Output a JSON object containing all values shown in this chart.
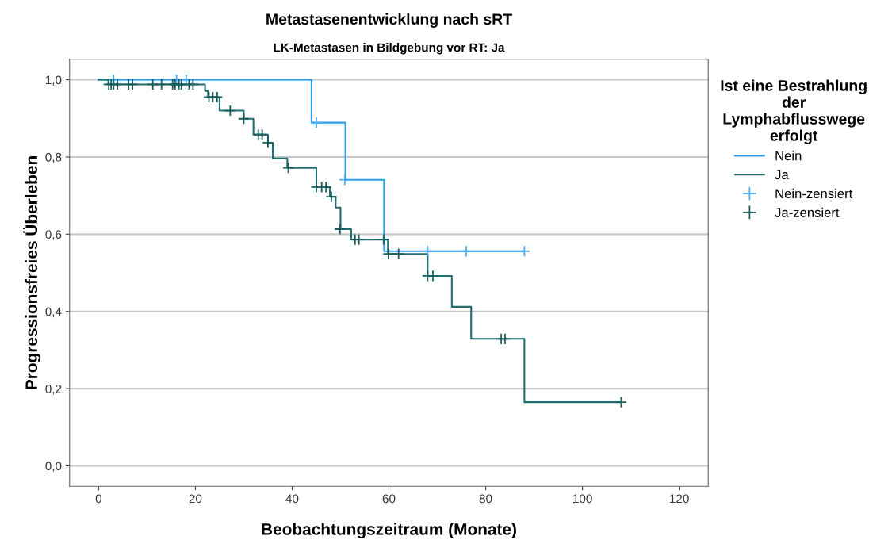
{
  "chart_data": {
    "type": "step",
    "title": "Metastasenentwicklung nach sRT",
    "subtitle": "LK-Metastasen in Bildgebung vor RT: Ja",
    "xlabel": "Beobachtungszeitraum (Monate)",
    "ylabel": "Progressionsfreies Überleben",
    "legend_title": "Ist eine Bestrahlung\nder\nLymphabflusswege\nerfolgt",
    "xlim": [
      -6,
      126
    ],
    "xticks": [
      0,
      20,
      40,
      60,
      80,
      100,
      120
    ],
    "ylim": [
      -0.053,
      1.053
    ],
    "yticks": [
      {
        "value": 0,
        "label": "0,0"
      },
      {
        "value": 0.2,
        "label": "0,2"
      },
      {
        "value": 0.4,
        "label": "0,4"
      },
      {
        "value": 0.6,
        "label": "0,6"
      },
      {
        "value": 0.8,
        "label": "0,8"
      },
      {
        "value": 1.0,
        "label": "1,0"
      }
    ],
    "grid": "y",
    "legend": "right",
    "series": [
      {
        "name": "Nein",
        "color": "#2e9fe8",
        "marker": "none",
        "x": [
          0,
          44,
          51,
          59,
          88
        ],
        "values": [
          1.0,
          0.889,
          0.741,
          0.556,
          0.556
        ]
      },
      {
        "name": "Ja",
        "color": "#1f6e70",
        "marker": "none",
        "x": [
          0,
          2,
          22,
          22.6,
          25,
          30,
          32,
          35,
          36,
          39,
          45,
          47.8,
          49,
          50,
          52.2,
          59.8,
          68,
          73,
          77,
          88,
          108
        ],
        "values": [
          1.0,
          0.988,
          0.971,
          0.955,
          0.92,
          0.899,
          0.858,
          0.837,
          0.796,
          0.772,
          0.722,
          0.697,
          0.669,
          0.613,
          0.586,
          0.549,
          0.492,
          0.412,
          0.329,
          0.165,
          0.165
        ]
      },
      {
        "name": "Nein-zensiert",
        "type": "scatter",
        "color": "#4aaef0",
        "marker": "cross",
        "x": [
          3.1,
          16.1,
          18.1,
          45,
          50.9,
          68,
          76,
          88
        ],
        "values": [
          1.0,
          1.0,
          1.0,
          0.889,
          0.741,
          0.556,
          0.556,
          0.556
        ]
      },
      {
        "name": "Ja-zensiert",
        "type": "scatter",
        "color": "#1a5e60",
        "marker": "cross",
        "x": [
          2.1,
          2.6,
          3.1,
          3.9,
          6.2,
          7.0,
          11.2,
          13.0,
          15.3,
          15.8,
          16.6,
          17.1,
          18.7,
          19.5,
          22.8,
          23.6,
          24.5,
          27.2,
          30.0,
          33.0,
          33.8,
          35.0,
          39.2,
          45.0,
          46.1,
          47.0,
          48.1,
          49.9,
          53.0,
          53.8,
          58.9,
          59.9,
          62.0,
          68.0,
          69.1,
          83.2,
          84.0,
          108
        ],
        "values": [
          0.988,
          0.988,
          0.988,
          0.988,
          0.988,
          0.988,
          0.988,
          0.988,
          0.988,
          0.988,
          0.988,
          0.988,
          0.988,
          0.988,
          0.955,
          0.955,
          0.955,
          0.92,
          0.899,
          0.858,
          0.858,
          0.837,
          0.772,
          0.722,
          0.722,
          0.722,
          0.697,
          0.613,
          0.586,
          0.586,
          0.586,
          0.549,
          0.549,
          0.492,
          0.492,
          0.329,
          0.329,
          0.165
        ]
      }
    ]
  }
}
